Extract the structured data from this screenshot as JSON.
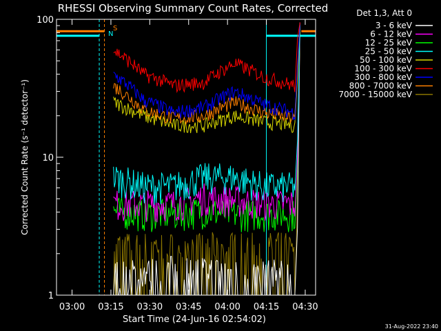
{
  "chart_data": {
    "type": "line",
    "title": "RHESSI Observing Summary Count Rates, Corrected",
    "xlabel": "Start Time (24-Jun-16 02:54:02)",
    "ylabel": "Corrected Count Rate (s⁻¹ detector⁻¹)",
    "yscale": "log",
    "ylim": [
      1,
      100
    ],
    "xlim_minutes": [
      0,
      100
    ],
    "x_ticks": [
      "03:00",
      "03:15",
      "03:30",
      "03:45",
      "04:00",
      "04:15",
      "04:30"
    ],
    "y_ticks": [
      "1",
      "10",
      "100"
    ],
    "legend_header": "Det 1,3, Att 0",
    "legend_position": "right",
    "footer_date": "31-Aug-2022 23:40",
    "markers": {
      "S": "S",
      "N": "N"
    },
    "series": [
      {
        "name": "3 - 6 keV",
        "color": "#ffffff",
        "base": [
          1.4,
          1.4,
          1.5,
          1.5,
          1.4,
          1.4,
          1.4
        ]
      },
      {
        "name": "6 - 12 keV",
        "color": "#ff00ff",
        "base": [
          4.5,
          4.5,
          4.5,
          5,
          4.8,
          4.5,
          4.5
        ]
      },
      {
        "name": "12 - 25 keV",
        "color": "#00ff00",
        "base": [
          4,
          3.8,
          3.8,
          4,
          3.8,
          3.8,
          3.8
        ]
      },
      {
        "name": "25 - 50 keV",
        "color": "#00ffff",
        "base": [
          7,
          6,
          6,
          7,
          7,
          6,
          6
        ]
      },
      {
        "name": "50 - 100 keV",
        "color": "#d8d800",
        "base": [
          25,
          20,
          17,
          17,
          20,
          18,
          17
        ]
      },
      {
        "name": "100 - 300 keV",
        "color": "#ff0000",
        "base": [
          60,
          40,
          33,
          35,
          48,
          38,
          33
        ]
      },
      {
        "name": "300 - 800 keV",
        "color": "#0000ff",
        "base": [
          40,
          26,
          21,
          23,
          30,
          24,
          21
        ]
      },
      {
        "name": "800 - 7000 keV",
        "color": "#ff8000",
        "base": [
          33,
          22,
          19,
          20,
          25,
          21,
          19
        ]
      },
      {
        "name": "7000 - 15000 keV",
        "color": "#8b7500",
        "base": [
          2.2,
          2.2,
          2.2,
          2.2,
          2.2,
          2.2,
          2.2
        ]
      }
    ]
  }
}
